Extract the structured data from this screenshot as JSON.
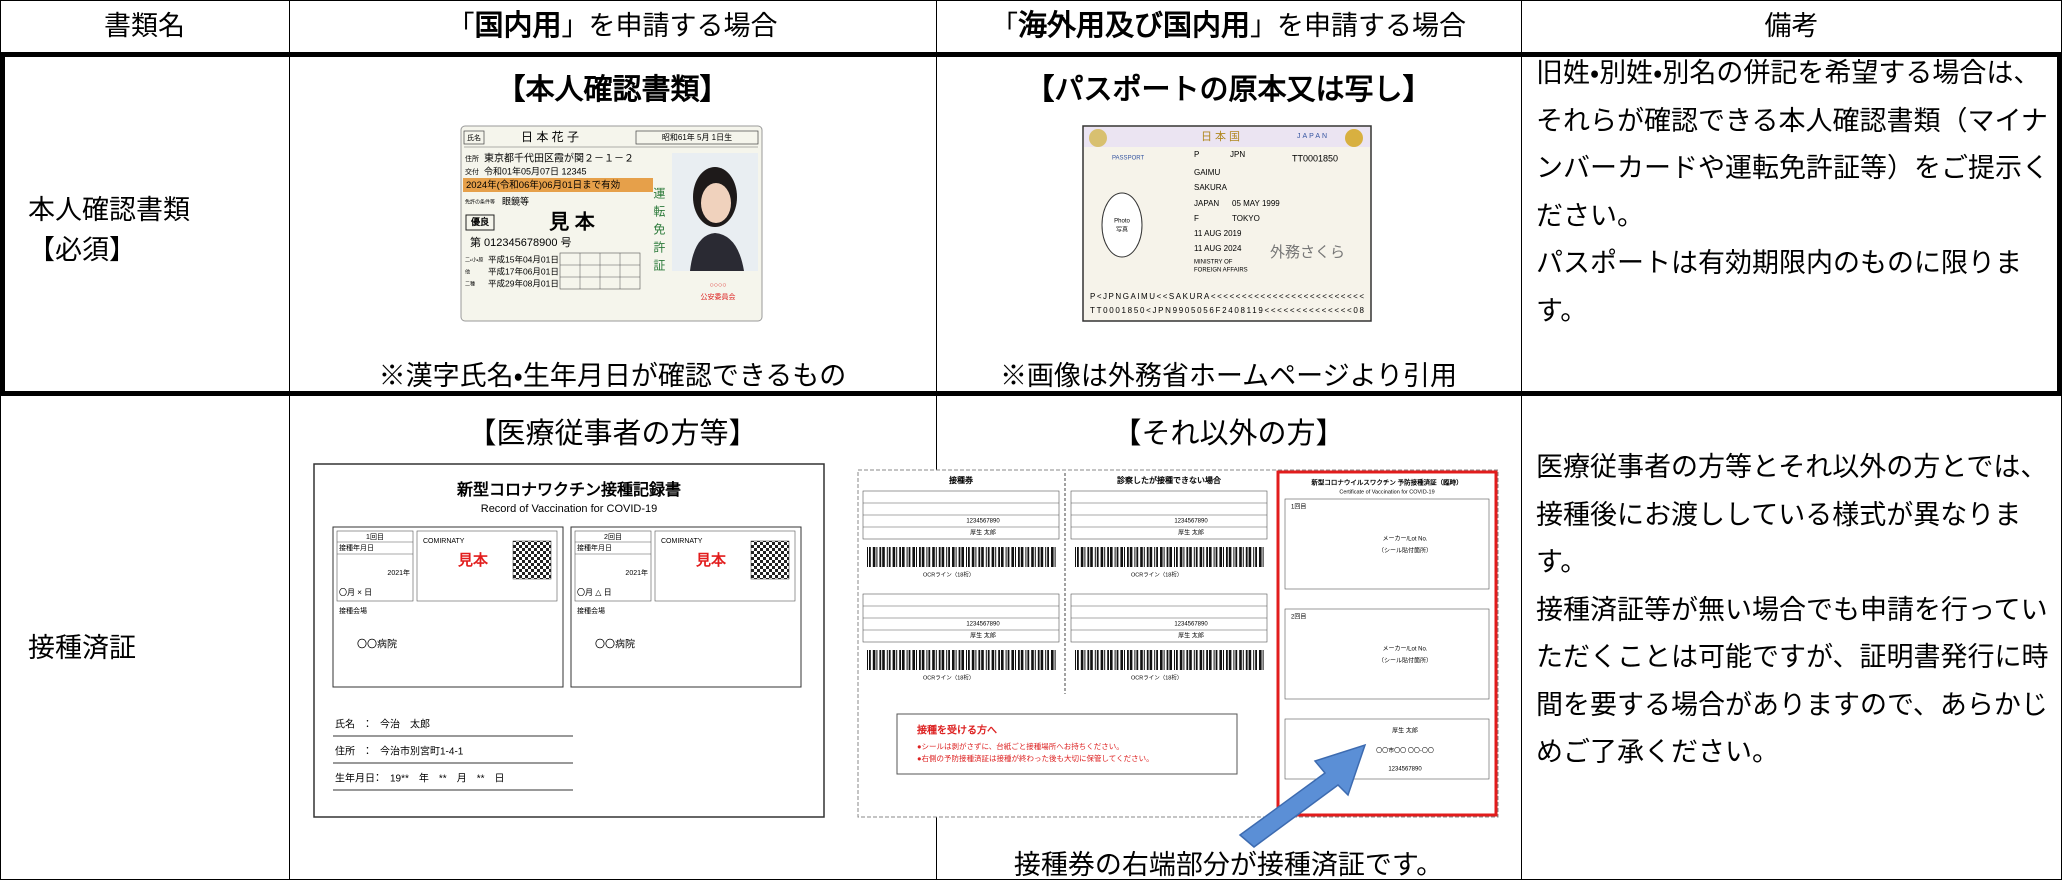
{
  "header": {
    "name": "書類名",
    "domestic": {
      "open": "「",
      "bold": "国内用",
      "close": "」を申請する場合"
    },
    "overseas": {
      "open": "「",
      "bold": "海外用及び国内用",
      "close": "」を申請する場合"
    },
    "remarks": "備考"
  },
  "rows": [
    {
      "name": "本人確認書類",
      "required": "【必須】",
      "domestic": {
        "heading": "【本人確認書類】",
        "caption": "※漢字氏名・生年月日が確認できるもの",
        "license": {
          "name_label": "氏名",
          "name": "日 本 花 子",
          "birth": "昭和61年 5月 1日生",
          "address_label": "住所",
          "address": "東京都千代田区霞が関２－１－２",
          "issued_label": "交付",
          "issued": "令和01年05月07日 12345",
          "valid": "2024年(令和06年)06月01日まで有効",
          "conditions_label": "免許の条件等",
          "conditions": "眼鏡等",
          "excellent": "優良",
          "sample": "見 本",
          "number": "第 012345678900 号",
          "date_labels": [
            "二・小・原",
            "他",
            "二種"
          ],
          "dates": [
            "平成15年04月01日",
            "平成17年06月01日",
            "平成29年08月01日"
          ],
          "title": "運転免許証",
          "seal": "○○○○",
          "authority": "公安委員会"
        }
      },
      "overseas": {
        "heading": "【パスポートの原本又は写し】",
        "caption": "※画像は外務省ホームページより引用",
        "passport": {
          "country_jp": "日本国",
          "country": "JAPAN",
          "label": "PASSPORT",
          "type": "P",
          "code": "JPN",
          "number": "TT0001850",
          "surname": "GAIMU",
          "given_name": "SAKURA",
          "nationality": "JAPAN",
          "birth": "05 MAY 1999",
          "sex": "F",
          "domicile": "TOKYO",
          "issue": "11 AUG 2019",
          "expiry": "11 AUG 2024",
          "authority": [
            "MINISTRY OF",
            "FOREIGN AFFAIRS"
          ],
          "signature": "外務さくら",
          "photo": [
            "Photo",
            "写真"
          ],
          "mrz": [
            "P<JPNGAIMU<<SAKURA<<<<<<<<<<<<<<<<<<<<<<<<<",
            "TT0001850<JPN9905056F2408119<<<<<<<<<<<<<<08"
          ]
        }
      },
      "remarks": [
        "旧姓・別姓・別名の併記を希望する場合は、それらが確認できる本人確認書類（マイナンバーカードや運転免許証等）をご提示ください。",
        "パスポートは有効期限内のものに限ります。"
      ]
    },
    {
      "name": "接種済証",
      "domestic": {
        "heading": "【医療従事者の方等】",
        "record": {
          "title": "新型コロナワクチン接種記録書",
          "subtitle": "Record of Vaccination for COVID-19",
          "doses": [
            {
              "dose": "1回目",
              "date_label": "接種年月日",
              "year": "2021年",
              "date": "〇月 × 日",
              "vaccine": "COMIRNATY",
              "sample": "見本",
              "venue_label": "接種会場",
              "venue": "〇〇病院"
            },
            {
              "dose": "2回目",
              "date_label": "接種年月日",
              "year": "2021年",
              "date": "〇月 △ 日",
              "vaccine": "COMIRNATY",
              "sample": "見本",
              "venue_label": "接種会場",
              "venue": "〇〇病院"
            }
          ],
          "fields": [
            "氏名　：　今治　太郎",
            "住所　：　今治市別宮町1-4-1",
            "生年月日：　19**　年　**　月　**　日"
          ]
        }
      },
      "overseas": {
        "heading": "【それ以外の方】",
        "caption": "接種券の右端部分が接種済証です。",
        "ticket": {
          "header_left": "接種券",
          "header_right": "診察したが接種できない場合",
          "ocr": "OCRライン（18桁）",
          "number": "1234567890",
          "name": "厚生 太郎",
          "notice_title": "接種を受ける方へ",
          "notice_lines": [
            "●シールは剥がさずに、台紙ごと接種場所へお持ちください。",
            "●右側の予防接種済証は接種が終わった後も大切に保管してください。"
          ],
          "cert_title": "新型コロナウイルスワクチン 予防接種済証（臨時）",
          "cert_subtitle": "Certificate of Vaccination for COVID-19",
          "dose1": "1回目",
          "dose2": "2回目",
          "maker": "メーカー/Lot No.",
          "sticker": "（シール貼付箇所）",
          "address": "〇〇市〇〇 〇〇-〇〇"
        }
      },
      "remarks": [
        "医療従事者の方等とそれ以外の方とでは、接種後にお渡ししている様式が異なります。",
        "接種済証等が無い場合でも申請を行っていただくことは可能ですが、証明書発行に時間を要する場合がありますので、あらかじめご了承ください。"
      ]
    }
  ]
}
